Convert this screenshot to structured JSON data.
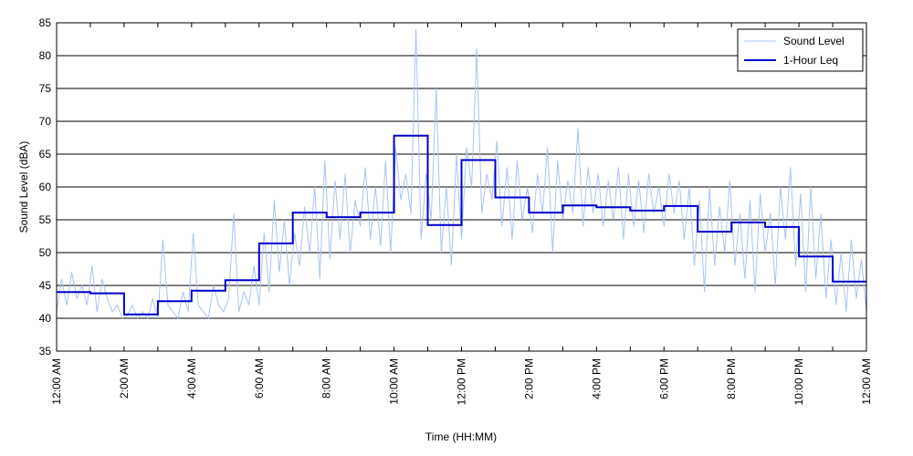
{
  "chart_data": {
    "type": "line",
    "title": "",
    "xlabel": "Time (HH:MM)",
    "ylabel": "Sound Level (dBA)",
    "ylim": [
      35,
      85
    ],
    "yticks": [
      35,
      40,
      45,
      50,
      55,
      60,
      65,
      70,
      75,
      80,
      85
    ],
    "xlim": [
      0,
      24
    ],
    "xticks": [
      {
        "hour": 0,
        "label": "12:00 AM"
      },
      {
        "hour": 2,
        "label": "2:00 AM"
      },
      {
        "hour": 4,
        "label": "4:00 AM"
      },
      {
        "hour": 6,
        "label": "6:00 AM"
      },
      {
        "hour": 8,
        "label": "8:00 AM"
      },
      {
        "hour": 10,
        "label": "10:00 AM"
      },
      {
        "hour": 12,
        "label": "12:00 PM"
      },
      {
        "hour": 14,
        "label": "2:00 PM"
      },
      {
        "hour": 16,
        "label": "4:00 PM"
      },
      {
        "hour": 18,
        "label": "6:00 PM"
      },
      {
        "hour": 20,
        "label": "8:00 PM"
      },
      {
        "hour": 22,
        "label": "10:00 PM"
      },
      {
        "hour": 24,
        "label": "12:00 AM"
      }
    ],
    "grid": "horizontal",
    "legend_position": "top-right",
    "colors": {
      "sound_level": "#a8c4f0",
      "leq": "#0000cc"
    },
    "series": [
      {
        "name": "Sound Level",
        "style": "thin-line",
        "x": [
          0.0,
          0.15,
          0.3,
          0.45,
          0.6,
          0.75,
          0.9,
          1.05,
          1.2,
          1.35,
          1.5,
          1.65,
          1.8,
          1.95,
          2.1,
          2.25,
          2.4,
          2.55,
          2.7,
          2.85,
          3.0,
          3.15,
          3.3,
          3.45,
          3.6,
          3.75,
          3.9,
          4.05,
          4.2,
          4.35,
          4.5,
          4.65,
          4.8,
          4.95,
          5.1,
          5.25,
          5.4,
          5.55,
          5.7,
          5.85,
          6.0,
          6.15,
          6.3,
          6.45,
          6.6,
          6.75,
          6.9,
          7.05,
          7.2,
          7.35,
          7.5,
          7.65,
          7.8,
          7.95,
          8.1,
          8.25,
          8.4,
          8.55,
          8.7,
          8.85,
          9.0,
          9.15,
          9.3,
          9.45,
          9.6,
          9.75,
          9.9,
          10.05,
          10.2,
          10.35,
          10.5,
          10.65,
          10.8,
          10.95,
          11.1,
          11.25,
          11.4,
          11.55,
          11.7,
          11.85,
          12.0,
          12.15,
          12.3,
          12.45,
          12.6,
          12.75,
          12.9,
          13.05,
          13.2,
          13.35,
          13.5,
          13.65,
          13.8,
          13.95,
          14.1,
          14.25,
          14.4,
          14.55,
          14.7,
          14.85,
          15.0,
          15.15,
          15.3,
          15.45,
          15.6,
          15.75,
          15.9,
          16.05,
          16.2,
          16.35,
          16.5,
          16.65,
          16.8,
          16.95,
          17.1,
          17.25,
          17.4,
          17.55,
          17.7,
          17.85,
          18.0,
          18.15,
          18.3,
          18.45,
          18.6,
          18.75,
          18.9,
          19.05,
          19.2,
          19.35,
          19.5,
          19.65,
          19.8,
          19.95,
          20.1,
          20.25,
          20.4,
          20.55,
          20.7,
          20.85,
          21.0,
          21.15,
          21.3,
          21.45,
          21.6,
          21.75,
          21.9,
          22.05,
          22.2,
          22.35,
          22.5,
          22.65,
          22.8,
          22.95,
          23.1,
          23.25,
          23.4,
          23.55,
          23.7,
          23.85,
          24.0
        ],
        "values": [
          41,
          46,
          42,
          47,
          43,
          45,
          42,
          48,
          41,
          46,
          43,
          41,
          42,
          40,
          40.5,
          42,
          40,
          41,
          40,
          43,
          40,
          52,
          42,
          41,
          40,
          44,
          41,
          53,
          42,
          41,
          40,
          45,
          42,
          41,
          43,
          56,
          41,
          44,
          42,
          48,
          42,
          53,
          44,
          58,
          47,
          55,
          45,
          53,
          48,
          57,
          50,
          60,
          46,
          64,
          49,
          61,
          52,
          62,
          50,
          58,
          54,
          63,
          52,
          60,
          51,
          64,
          50,
          66,
          58,
          62,
          56,
          84,
          52,
          62,
          55,
          75,
          50,
          60,
          48,
          65,
          52,
          66,
          60,
          81,
          56,
          62,
          58,
          67,
          54,
          63,
          52,
          64,
          55,
          60,
          53,
          62,
          56,
          66,
          50,
          64,
          55,
          61,
          56,
          69,
          54,
          63,
          56,
          62,
          54,
          61,
          55,
          63,
          52,
          62,
          54,
          61,
          53,
          62,
          56,
          60,
          54,
          62,
          56,
          61,
          52,
          60,
          48,
          58,
          44,
          60,
          48,
          57,
          50,
          61,
          48,
          56,
          46,
          58,
          44,
          59,
          50,
          56,
          45,
          60,
          52,
          63,
          48,
          59,
          44,
          60,
          46,
          56,
          43,
          52,
          42,
          50,
          41,
          52,
          43,
          49,
          41
        ]
      },
      {
        "name": "1-Hour Leq",
        "style": "step",
        "hours": [
          0,
          1,
          2,
          3,
          4,
          5,
          6,
          7,
          8,
          9,
          10,
          11,
          12,
          13,
          14,
          15,
          16,
          17,
          18,
          19,
          20,
          21,
          22,
          23
        ],
        "values": [
          44,
          43.8,
          40.6,
          42.6,
          44.2,
          45.8,
          51.4,
          56.1,
          55.4,
          56.1,
          67.8,
          54.2,
          64.1,
          58.4,
          56.1,
          57.2,
          56.9,
          56.4,
          57.1,
          53.2,
          54.6,
          53.9,
          49.4,
          45.6
        ]
      }
    ]
  }
}
